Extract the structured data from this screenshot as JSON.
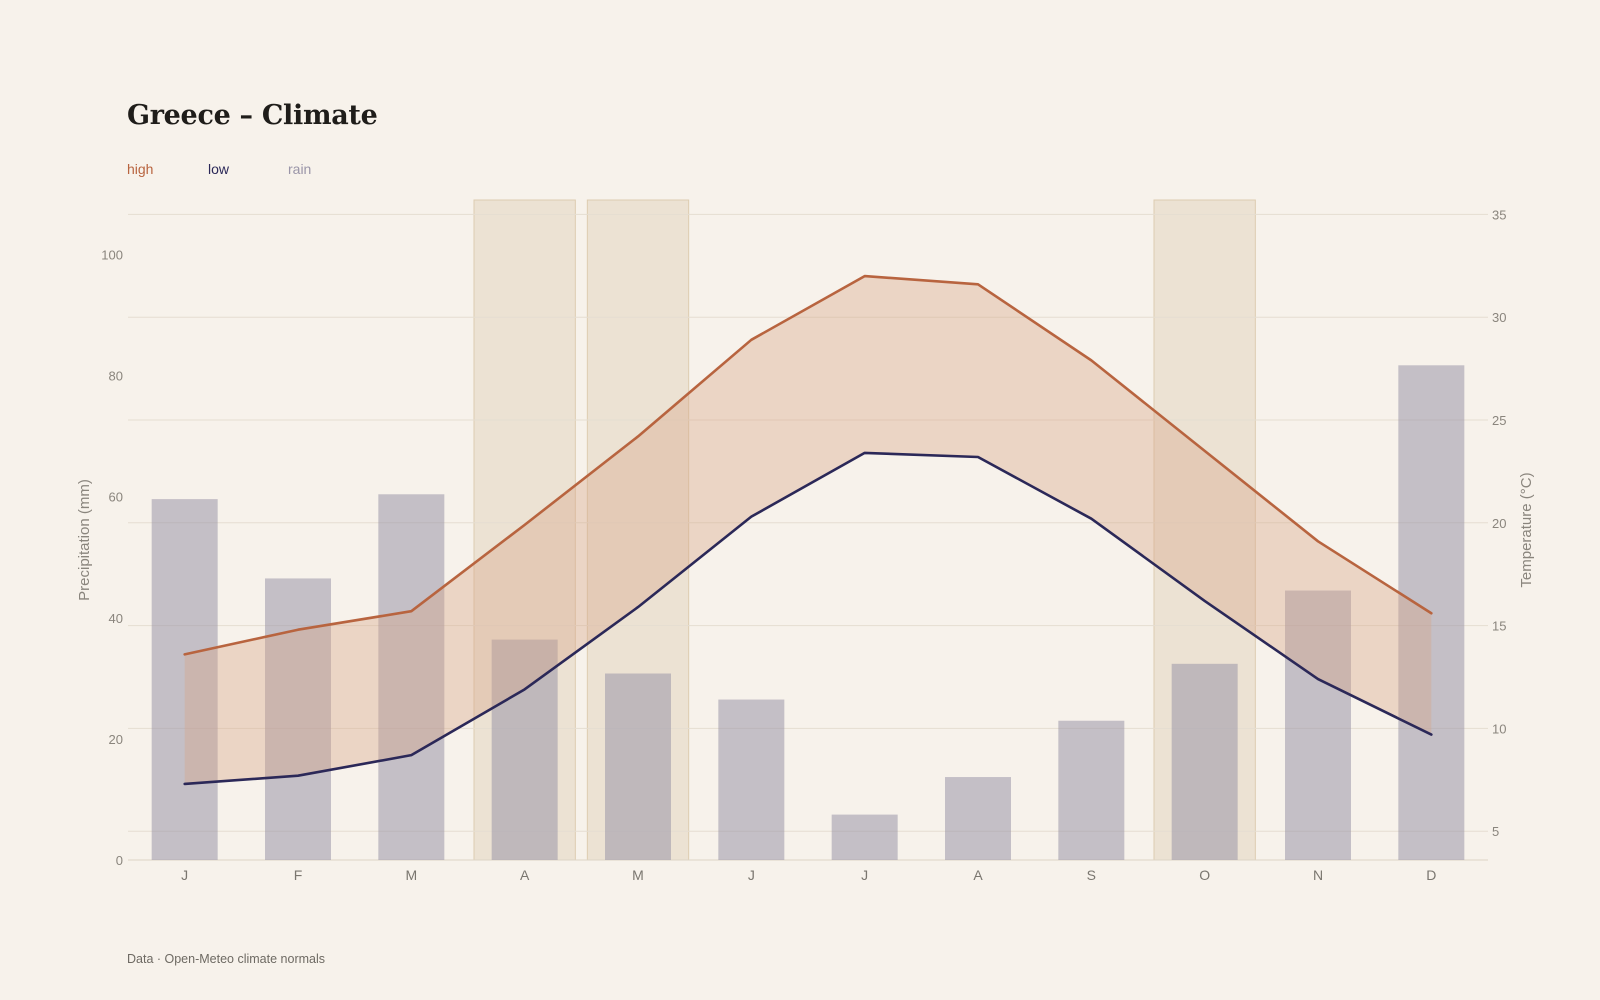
{
  "title": "Greece – Climate",
  "footer": "Data · Open-Meteo climate normals",
  "legend": {
    "high": "high",
    "low": "low",
    "rain": "rain"
  },
  "colors": {
    "high": "#b8643f",
    "low": "#2b2858",
    "rain": "#9a95a8",
    "band": "#d7a58a",
    "highlight": "#e4d6c0",
    "background": "#f7f2eb"
  },
  "chart_data": {
    "type": "bar+line",
    "categories": [
      "J",
      "F",
      "M",
      "A",
      "M",
      "J",
      "J",
      "A",
      "S",
      "O",
      "N",
      "D"
    ],
    "series": [
      {
        "name": "rain",
        "axis": "left",
        "type": "bar",
        "values": [
          59.6,
          46.5,
          60.4,
          36.4,
          30.8,
          26.5,
          7.5,
          13.7,
          23.0,
          32.4,
          44.5,
          81.7
        ]
      },
      {
        "name": "high",
        "axis": "right",
        "type": "line",
        "values": [
          13.6,
          14.8,
          15.7,
          19.9,
          24.2,
          28.9,
          32.0,
          31.6,
          27.9,
          23.5,
          19.1,
          15.6
        ]
      },
      {
        "name": "low",
        "axis": "right",
        "type": "line",
        "values": [
          7.3,
          7.7,
          8.7,
          11.9,
          15.9,
          20.3,
          23.4,
          23.2,
          20.2,
          16.2,
          12.4,
          9.7
        ]
      }
    ],
    "highlighted_months": [
      3,
      4,
      9
    ],
    "ylabel_left": "Precipitation (mm)",
    "ylabel_right": "Temperature (°C)",
    "ylim_left": [
      0,
      109
    ],
    "ylim_right": [
      3.6,
      35.7
    ],
    "yticks_left": [
      "0",
      "20",
      "40",
      "60",
      "80",
      "100"
    ],
    "yticks_right": [
      "5",
      "10",
      "15",
      "20",
      "25",
      "30",
      "35"
    ],
    "grid": true
  }
}
